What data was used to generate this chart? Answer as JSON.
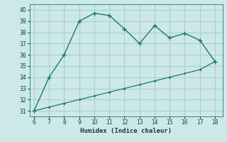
{
  "xlabel": "Humidex (Indice chaleur)",
  "x_main": [
    6,
    7,
    8,
    9,
    10,
    11,
    12,
    13,
    14,
    15,
    16,
    17,
    18
  ],
  "y_main": [
    31,
    34,
    36,
    39,
    39.7,
    39.5,
    38.3,
    37.0,
    38.6,
    37.5,
    37.9,
    37.3,
    35.4
  ],
  "x_line2": [
    6,
    7,
    8,
    9,
    10,
    11,
    12,
    13,
    14,
    15,
    16,
    17,
    18
  ],
  "y_line2": [
    31,
    31.33,
    31.67,
    32.0,
    32.33,
    32.67,
    33.0,
    33.33,
    33.67,
    34.0,
    34.33,
    34.67,
    35.4
  ],
  "line_color": "#1a7a6e",
  "bg_color": "#cce8e8",
  "grid_color": "#aacece",
  "xlim": [
    5.7,
    18.5
  ],
  "ylim": [
    30.5,
    40.5
  ],
  "xticks": [
    6,
    7,
    8,
    9,
    10,
    11,
    12,
    13,
    14,
    15,
    16,
    17,
    18
  ],
  "yticks": [
    31,
    32,
    33,
    34,
    35,
    36,
    37,
    38,
    39,
    40
  ]
}
